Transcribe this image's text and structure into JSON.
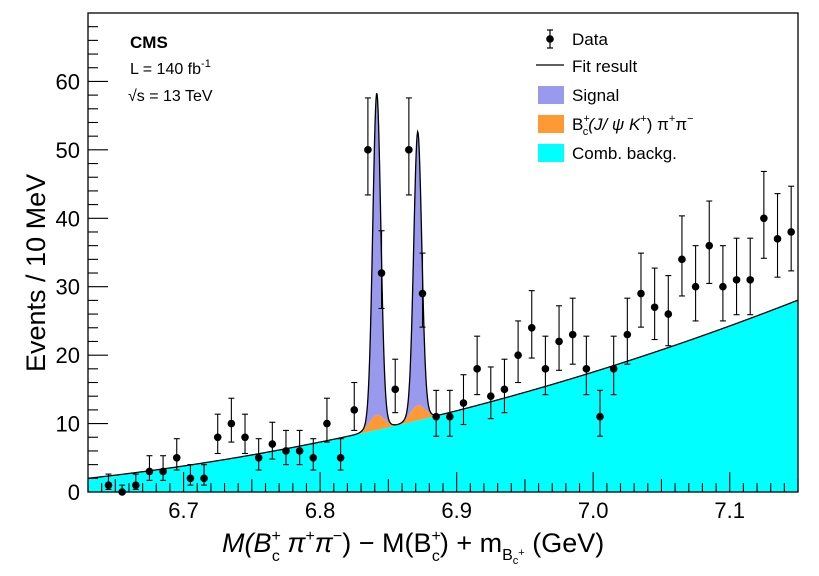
{
  "chart_data": {
    "type": "histogram-fit",
    "experiment": "CMS",
    "luminosity_label": "L = 140 fb",
    "luminosity_exp": "-1",
    "energy_label": "s = 13 TeV",
    "energy_sqrt": "√",
    "ylabel": "Events / 10 MeV",
    "xlabel": {
      "p1": "M(B",
      "p1_sup": "+",
      "p1_sub": "c",
      "p2": " π",
      "p2_sup": "+",
      "p3": "π",
      "p3_sup": "−",
      "p4": ") − M(B",
      "p4_sup": "+",
      "p4_sub": "c",
      "p5": ") + m",
      "p5_sub": "B",
      "p5_subsub": "c",
      "p5_subsup": "+",
      "p6": " (GeV)"
    },
    "xlim": [
      6.63,
      7.15
    ],
    "ylim": [
      0,
      70
    ],
    "x_ticks": [
      6.7,
      6.8,
      6.9,
      7.0,
      7.1
    ],
    "x_tick_labels": [
      "6.7",
      "6.8",
      "6.9",
      "7.0",
      "7.1"
    ],
    "y_ticks": [
      0,
      10,
      20,
      30,
      40,
      50,
      60
    ],
    "y_tick_labels": [
      "0",
      "10",
      "20",
      "30",
      "40",
      "50",
      "60"
    ],
    "legend": {
      "position": "top-right",
      "entries": [
        {
          "key": "data",
          "label": "Data"
        },
        {
          "key": "fit",
          "label": "Fit result"
        },
        {
          "key": "signal",
          "label": "Signal"
        },
        {
          "key": "peaking",
          "label_p1": "B",
          "label_sup": "+",
          "label_sub": "c",
          "label_p2": "(J/ ψ K",
          "label_p2_sup": "+",
          "label_p3": ") π",
          "label_p3_sup": "+",
          "label_p4": "π",
          "label_p4_sup": "−"
        },
        {
          "key": "comb",
          "label": "Comb. backg."
        }
      ]
    },
    "colors": {
      "signal": "#9999ee",
      "peaking": "#ff9933",
      "comb": "#00ffff",
      "fit": "#000000",
      "data": "#000000"
    },
    "data_points": {
      "x": [
        6.645,
        6.655,
        6.665,
        6.675,
        6.685,
        6.695,
        6.705,
        6.715,
        6.725,
        6.735,
        6.745,
        6.755,
        6.765,
        6.775,
        6.785,
        6.795,
        6.805,
        6.815,
        6.825,
        6.835,
        6.845,
        6.855,
        6.865,
        6.875,
        6.885,
        6.895,
        6.905,
        6.915,
        6.925,
        6.935,
        6.945,
        6.955,
        6.965,
        6.975,
        6.985,
        6.995,
        7.005,
        7.015,
        7.025,
        7.035,
        7.045,
        7.055,
        7.065,
        7.075,
        7.085,
        7.095,
        7.105,
        7.115,
        7.125,
        7.135,
        7.145
      ],
      "y": [
        1,
        0,
        1,
        3,
        3,
        5,
        2,
        2,
        8,
        10,
        8,
        5,
        7,
        6,
        6,
        5,
        10,
        5,
        12,
        50,
        32,
        15,
        50,
        29,
        11,
        11,
        13,
        18,
        14,
        15,
        20,
        24,
        18,
        22,
        23,
        18,
        11,
        18,
        23,
        29,
        27,
        26,
        34,
        30,
        36,
        30,
        31,
        31,
        40,
        37,
        38
      ]
    },
    "background": {
      "comb_coeffs": [
        2.0,
        22.0,
        54.0
      ]
    },
    "signal_peaks": [
      {
        "mean": 6.8415,
        "sigma": 0.0029,
        "amplitude": 47
      },
      {
        "mean": 6.8715,
        "sigma": 0.0029,
        "amplitude": 40
      }
    ],
    "peaking_bumps": [
      {
        "mean": 6.8415,
        "sigma": 0.0055,
        "amplitude": 2.2
      },
      {
        "mean": 6.8715,
        "sigma": 0.0055,
        "amplitude": 2.2
      }
    ]
  }
}
